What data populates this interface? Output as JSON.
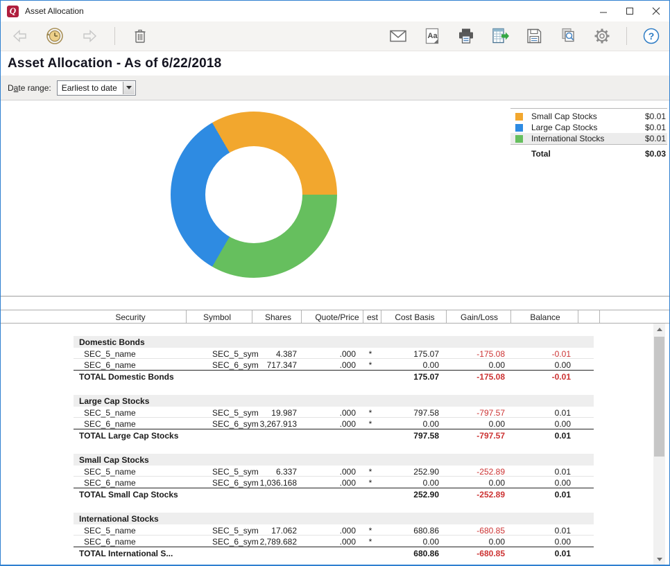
{
  "window": {
    "title": "Asset Allocation",
    "logo_letter": "Q"
  },
  "toolbar": {
    "left_icons": [
      "back",
      "history",
      "forward",
      "delete"
    ],
    "right_icons": [
      "email",
      "format-font",
      "print",
      "export",
      "save",
      "print-preview",
      "settings",
      "help"
    ],
    "format_icon_text": "Aa",
    "help_icon_text": "?"
  },
  "header": {
    "title": "Asset Allocation - As of 6/22/2018"
  },
  "date_bar": {
    "label_pre": "D",
    "label_accel": "a",
    "label_post": "te range:",
    "value": "Earliest to date"
  },
  "chart_data": {
    "type": "pie",
    "donut": true,
    "title": "Asset Allocation - As of 6/22/2018",
    "categories": [
      "Small Cap Stocks",
      "Large Cap Stocks",
      "International Stocks"
    ],
    "values": [
      0.01,
      0.01,
      0.01
    ],
    "total": 0.03,
    "colors": [
      "#F2A72E",
      "#2E8BE2",
      "#66BF5E"
    ],
    "start_angle_deg": -30,
    "segment_order": [
      0,
      2,
      1
    ],
    "legend_position": "top-right"
  },
  "legend": {
    "items": [
      {
        "label": "Small Cap Stocks",
        "value": "$0.01",
        "color": "#F2A72E",
        "highlighted": false
      },
      {
        "label": "Large Cap Stocks",
        "value": "$0.01",
        "color": "#2E8BE2",
        "highlighted": false
      },
      {
        "label": "International Stocks",
        "value": "$0.01",
        "color": "#66BF5E",
        "highlighted": true
      }
    ],
    "total_label": "Total",
    "total_value": "$0.03"
  },
  "table": {
    "columns": [
      "Security",
      "Symbol",
      "Shares",
      "Quote/Price",
      "est",
      "Cost Basis",
      "Gain/Loss",
      "Balance"
    ],
    "sections": [
      {
        "name": "Domestic Bonds",
        "rows": [
          {
            "security": "SEC_5_name",
            "symbol": "SEC_5_sym",
            "shares": "4.387",
            "quote_price": ".000",
            "est": "*",
            "cost_basis": "175.07",
            "gain_loss": "-175.08",
            "balance": "-0.01"
          },
          {
            "security": "SEC_6_name",
            "symbol": "SEC_6_sym",
            "shares": "717.347",
            "quote_price": ".000",
            "est": "*",
            "cost_basis": "0.00",
            "gain_loss": "0.00",
            "balance": "0.00"
          }
        ],
        "total": {
          "label": "TOTAL Domestic Bonds",
          "cost_basis": "175.07",
          "gain_loss": "-175.08",
          "balance": "-0.01"
        }
      },
      {
        "name": "Large Cap Stocks",
        "rows": [
          {
            "security": "SEC_5_name",
            "symbol": "SEC_5_sym",
            "shares": "19.987",
            "quote_price": ".000",
            "est": "*",
            "cost_basis": "797.58",
            "gain_loss": "-797.57",
            "balance": "0.01"
          },
          {
            "security": "SEC_6_name",
            "symbol": "SEC_6_sym",
            "shares": "3,267.913",
            "quote_price": ".000",
            "est": "*",
            "cost_basis": "0.00",
            "gain_loss": "0.00",
            "balance": "0.00"
          }
        ],
        "total": {
          "label": "TOTAL Large Cap Stocks",
          "cost_basis": "797.58",
          "gain_loss": "-797.57",
          "balance": "0.01"
        }
      },
      {
        "name": "Small Cap Stocks",
        "rows": [
          {
            "security": "SEC_5_name",
            "symbol": "SEC_5_sym",
            "shares": "6.337",
            "quote_price": ".000",
            "est": "*",
            "cost_basis": "252.90",
            "gain_loss": "-252.89",
            "balance": "0.01"
          },
          {
            "security": "SEC_6_name",
            "symbol": "SEC_6_sym",
            "shares": "1,036.168",
            "quote_price": ".000",
            "est": "*",
            "cost_basis": "0.00",
            "gain_loss": "0.00",
            "balance": "0.00"
          }
        ],
        "total": {
          "label": "TOTAL Small Cap Stocks",
          "cost_basis": "252.90",
          "gain_loss": "-252.89",
          "balance": "0.01"
        }
      },
      {
        "name": "International Stocks",
        "rows": [
          {
            "security": "SEC_5_name",
            "symbol": "SEC_5_sym",
            "shares": "17.062",
            "quote_price": ".000",
            "est": "*",
            "cost_basis": "680.86",
            "gain_loss": "-680.85",
            "balance": "0.01"
          },
          {
            "security": "SEC_6_name",
            "symbol": "SEC_6_sym",
            "shares": "2,789.682",
            "quote_price": ".000",
            "est": "*",
            "cost_basis": "0.00",
            "gain_loss": "0.00",
            "balance": "0.00"
          }
        ],
        "total": {
          "label": "TOTAL International S...",
          "cost_basis": "680.86",
          "gain_loss": "-680.85",
          "balance": "0.01"
        }
      }
    ]
  }
}
